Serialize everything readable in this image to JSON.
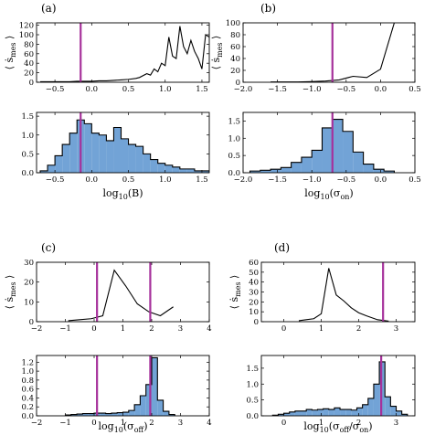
{
  "colors": {
    "hist": "#72a3d6",
    "vline": "#a6319b",
    "line": "#000000"
  },
  "panels": [
    {
      "label": "(a)",
      "ylabel_sub": "mes",
      "xlabel_main": "log",
      "xlabel_sub": "10",
      "xlabel_arg": "(B)",
      "chart_data": [
        {
          "type": "line",
          "xlim": [
            -0.75,
            1.6
          ],
          "ylim": [
            0,
            125
          ],
          "xticks": [
            -0.5,
            0.0,
            0.5,
            1.0,
            1.5
          ],
          "yticks": [
            0,
            20,
            40,
            60,
            80,
            100,
            120
          ],
          "xticklabels": [
            "−0.5",
            "0.0",
            "0.5",
            "1.0",
            "1.5"
          ],
          "yticklabels": [
            "0",
            "20",
            "40",
            "60",
            "80",
            "100",
            "120"
          ],
          "vlines": [
            -0.15
          ],
          "x": [
            -0.7,
            -0.6,
            -0.5,
            -0.4,
            -0.3,
            -0.2,
            -0.1,
            0.0,
            0.1,
            0.2,
            0.3,
            0.4,
            0.5,
            0.6,
            0.65,
            0.75,
            0.8,
            0.85,
            0.9,
            0.95,
            1.0,
            1.05,
            1.1,
            1.15,
            1.2,
            1.25,
            1.3,
            1.35,
            1.4,
            1.45,
            1.5,
            1.55,
            1.6
          ],
          "y": [
            1,
            1,
            1,
            1,
            1,
            2,
            2,
            2,
            3,
            3,
            4,
            5,
            6,
            8,
            10,
            18,
            15,
            28,
            22,
            40,
            35,
            95,
            55,
            50,
            118,
            75,
            60,
            88,
            65,
            50,
            28,
            100,
            95
          ]
        },
        {
          "type": "bar",
          "xlim": [
            -0.75,
            1.6
          ],
          "ylim": [
            0,
            1.6
          ],
          "xticks": [
            -0.5,
            0.0,
            0.5,
            1.0,
            1.5
          ],
          "yticks": [
            0.0,
            0.5,
            1.0,
            1.5
          ],
          "xticklabels": [
            "−0.5",
            "0.0",
            "0.5",
            "1.0",
            "1.5"
          ],
          "yticklabels": [
            "0.0",
            "0.5",
            "1.0",
            "1.5"
          ],
          "vlines": [
            -0.15
          ],
          "bin_edges": [
            -0.7,
            -0.6,
            -0.5,
            -0.4,
            -0.3,
            -0.2,
            -0.1,
            0.0,
            0.1,
            0.2,
            0.3,
            0.4,
            0.5,
            0.6,
            0.7,
            0.8,
            0.9,
            1.0,
            1.1,
            1.2,
            1.3,
            1.4,
            1.5,
            1.6
          ],
          "values": [
            0.05,
            0.2,
            0.45,
            0.75,
            1.05,
            1.4,
            1.3,
            1.05,
            1.0,
            0.85,
            1.2,
            0.9,
            0.75,
            0.7,
            0.5,
            0.35,
            0.25,
            0.2,
            0.15,
            0.1,
            0.1,
            0.05,
            0.05
          ]
        }
      ]
    },
    {
      "label": "(b)",
      "ylabel_sub": "mes",
      "xlabel_main": "log",
      "xlabel_sub": "10",
      "xlabel_arg": "(σ",
      "xlabel_arg_sub": "on",
      "xlabel_tail": ")",
      "chart_data": [
        {
          "type": "line",
          "xlim": [
            -2.0,
            0.5
          ],
          "ylim": [
            0,
            100
          ],
          "xticks": [
            -2.0,
            -1.5,
            -1.0,
            -0.5,
            0.0,
            0.5
          ],
          "yticks": [
            0,
            20,
            40,
            60,
            80,
            100
          ],
          "xticklabels": [
            "−2.0",
            "−1.5",
            "−1.0",
            "−0.5",
            "0.0",
            "0.5"
          ],
          "yticklabels": [
            "0",
            "20",
            "40",
            "60",
            "80",
            "100"
          ],
          "vlines": [
            -0.7
          ],
          "x": [
            -1.6,
            -1.4,
            -1.2,
            -1.0,
            -0.8,
            -0.6,
            -0.4,
            -0.2,
            0.0,
            0.2
          ],
          "y": [
            0.5,
            0.5,
            0.5,
            1,
            2,
            4,
            10,
            8,
            22,
            100
          ]
        },
        {
          "type": "bar",
          "xlim": [
            -2.0,
            0.5
          ],
          "ylim": [
            0,
            1.75
          ],
          "xticks": [
            -2.0,
            -1.5,
            -1.0,
            -0.5,
            0.0,
            0.5
          ],
          "yticks": [
            0.0,
            0.5,
            1.0,
            1.5
          ],
          "xticklabels": [
            "−2.0",
            "−1.5",
            "−1.0",
            "−0.5",
            "0.0",
            "0.5"
          ],
          "yticklabels": [
            "0.0",
            "0.5",
            "1.0",
            "1.5"
          ],
          "vlines": [
            -0.7
          ],
          "bin_edges": [
            -1.9,
            -1.75,
            -1.6,
            -1.45,
            -1.3,
            -1.15,
            -1.0,
            -0.85,
            -0.7,
            -0.55,
            -0.4,
            -0.25,
            -0.1,
            0.05,
            0.2
          ],
          "values": [
            0.05,
            0.07,
            0.1,
            0.15,
            0.3,
            0.45,
            0.65,
            1.3,
            1.55,
            1.2,
            0.6,
            0.25,
            0.1,
            0.05
          ]
        }
      ]
    },
    {
      "label": "(c)",
      "ylabel_sub": "mes",
      "xlabel_main": "log",
      "xlabel_sub": "10",
      "xlabel_arg": "(σ",
      "xlabel_arg_sub": "off",
      "xlabel_tail": ")",
      "chart_data": [
        {
          "type": "line",
          "xlim": [
            -2,
            4
          ],
          "ylim": [
            0,
            30
          ],
          "xticks": [
            -2,
            -1,
            0,
            1,
            2,
            3,
            4
          ],
          "yticks": [
            0,
            10,
            20,
            30
          ],
          "xticklabels": [
            "−2",
            "−1",
            "0",
            "1",
            "2",
            "3",
            "4"
          ],
          "yticklabels": [
            "0",
            "10",
            "20",
            "30"
          ],
          "vlines": [
            0.1,
            1.95
          ],
          "x": [
            -0.9,
            -0.5,
            -0.1,
            0.3,
            0.7,
            1.1,
            1.5,
            1.9,
            2.3,
            2.75
          ],
          "y": [
            0.5,
            1,
            1.5,
            3,
            26,
            18,
            9,
            5,
            3,
            7.5
          ]
        },
        {
          "type": "bar",
          "xlim": [
            -2,
            4
          ],
          "ylim": [
            0,
            1.35
          ],
          "xticks": [
            -2,
            -1,
            0,
            1,
            2,
            3,
            4
          ],
          "yticks": [
            0.0,
            0.2,
            0.4,
            0.6,
            0.8,
            1.0,
            1.2
          ],
          "xticklabels": [
            "−2",
            "−1",
            "0",
            "1",
            "2",
            "3",
            "4"
          ],
          "yticklabels": [
            "0.0",
            "0.2",
            "0.4",
            "0.6",
            "0.8",
            "1.0",
            "1.2"
          ],
          "vlines": [
            0.1,
            1.95
          ],
          "bin_edges": [
            -1.0,
            -0.8,
            -0.6,
            -0.4,
            -0.2,
            0.0,
            0.2,
            0.4,
            0.6,
            0.8,
            1.0,
            1.2,
            1.4,
            1.6,
            1.8,
            2.0,
            2.2,
            2.4,
            2.6,
            2.8
          ],
          "values": [
            0.02,
            0.03,
            0.04,
            0.05,
            0.05,
            0.06,
            0.06,
            0.05,
            0.06,
            0.07,
            0.08,
            0.12,
            0.25,
            0.45,
            0.7,
            1.3,
            0.35,
            0.1,
            0.03
          ]
        }
      ]
    },
    {
      "label": "(d)",
      "ylabel_sub": "mes",
      "xlabel_main": "log",
      "xlabel_sub": "10",
      "xlabel_arg": "(σ",
      "xlabel_arg_sub": "off",
      "xlabel_mid": "/σ",
      "xlabel_arg_sub2": "on",
      "xlabel_tail": ")",
      "chart_data": [
        {
          "type": "line",
          "xlim": [
            -0.6,
            3.5
          ],
          "ylim": [
            0,
            60
          ],
          "xticks": [
            0,
            1,
            2,
            3
          ],
          "yticks": [
            0,
            10,
            20,
            30,
            40,
            50,
            60
          ],
          "xticklabels": [
            "0",
            "1",
            "2",
            "3"
          ],
          "yticklabels": [
            "0",
            "10",
            "20",
            "30",
            "40",
            "50",
            "60"
          ],
          "vlines": [
            2.65
          ],
          "x": [
            0.4,
            0.6,
            0.8,
            1.0,
            1.2,
            1.4,
            1.6,
            1.8,
            2.0,
            2.2,
            2.5,
            2.8
          ],
          "y": [
            1,
            2,
            3,
            8,
            54,
            27,
            21,
            14,
            9,
            6,
            2,
            0.5
          ]
        },
        {
          "type": "bar",
          "xlim": [
            -0.6,
            3.5
          ],
          "ylim": [
            0,
            1.9
          ],
          "xticks": [
            0,
            1,
            2,
            3
          ],
          "yticks": [
            0.0,
            0.5,
            1.0,
            1.5
          ],
          "xticklabels": [
            "0",
            "1",
            "2",
            "3"
          ],
          "yticklabels": [
            "0.0",
            "0.5",
            "1.0",
            "1.5"
          ],
          "vlines": [
            2.6
          ],
          "bin_edges": [
            -0.3,
            -0.15,
            0.0,
            0.15,
            0.3,
            0.45,
            0.6,
            0.75,
            0.9,
            1.05,
            1.2,
            1.35,
            1.5,
            1.65,
            1.8,
            1.95,
            2.1,
            2.25,
            2.4,
            2.55,
            2.7,
            2.85,
            3.0,
            3.15,
            3.3
          ],
          "values": [
            0.02,
            0.05,
            0.08,
            0.12,
            0.15,
            0.15,
            0.2,
            0.18,
            0.2,
            0.22,
            0.2,
            0.25,
            0.2,
            0.2,
            0.18,
            0.25,
            0.35,
            0.55,
            1.0,
            1.7,
            0.6,
            0.3,
            0.15,
            0.05
          ]
        }
      ]
    }
  ]
}
